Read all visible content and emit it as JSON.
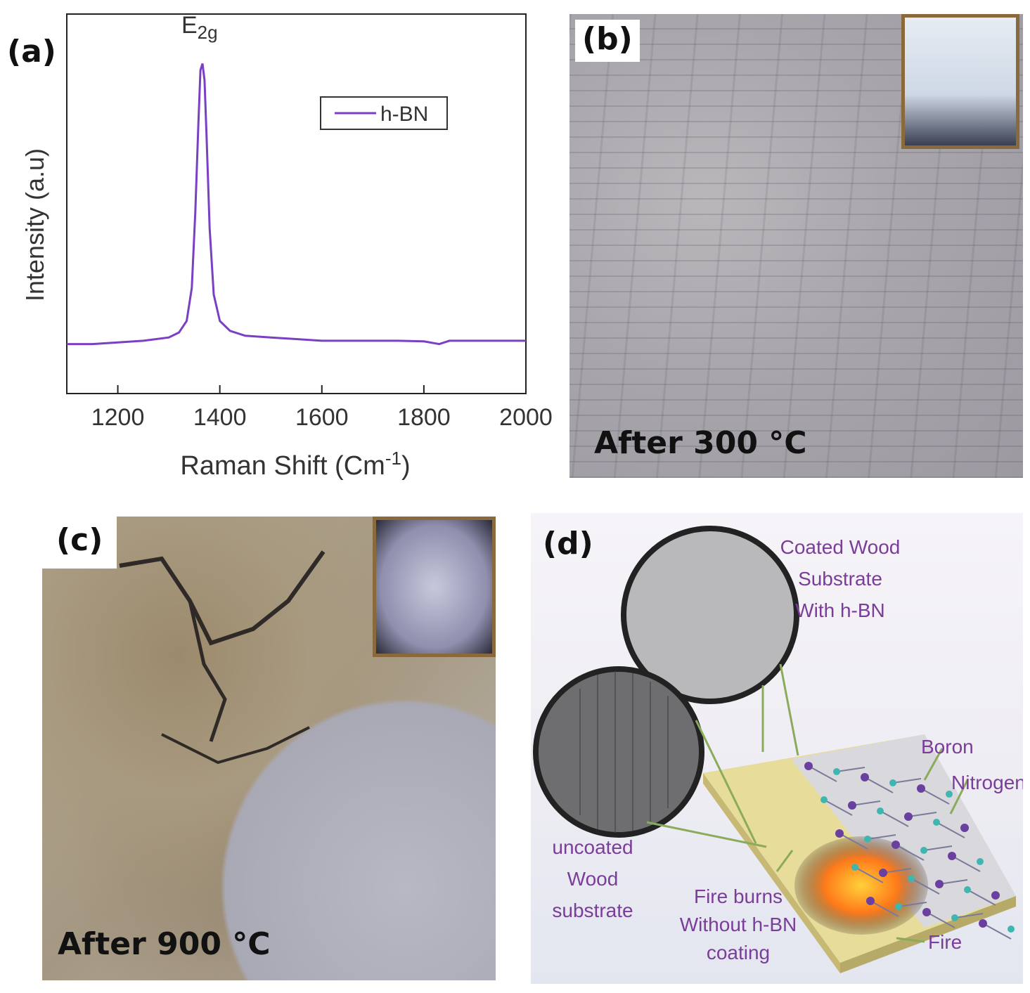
{
  "panels": {
    "a_label": "(a)",
    "b_label": "(b)",
    "c_label": "(c)",
    "d_label": "(d)"
  },
  "chart_data": {
    "type": "line",
    "xlabel": "Raman Shift (Cm",
    "xlabel_sup": "-1",
    "xlabel_end": ")",
    "ylabel": "Intensity (a.u)",
    "xlim": [
      1100,
      2000
    ],
    "ylim": [
      0,
      1.15
    ],
    "xticks": [
      1200,
      1400,
      1600,
      1800,
      2000
    ],
    "legend": "top-right",
    "annotations": [
      {
        "text": "E",
        "sub": "2g",
        "x": 1366,
        "y": 1.05
      }
    ],
    "series": [
      {
        "name": "h-BN",
        "color": "#7b3fc4",
        "x": [
          1100,
          1150,
          1200,
          1250,
          1300,
          1320,
          1335,
          1345,
          1352,
          1358,
          1362,
          1366,
          1370,
          1374,
          1380,
          1388,
          1400,
          1420,
          1450,
          1500,
          1550,
          1600,
          1650,
          1700,
          1750,
          1800,
          1830,
          1850,
          1900,
          1950,
          2000
        ],
        "y": [
          0.15,
          0.15,
          0.155,
          0.16,
          0.17,
          0.185,
          0.22,
          0.32,
          0.55,
          0.82,
          0.98,
          1.0,
          0.95,
          0.78,
          0.5,
          0.3,
          0.22,
          0.19,
          0.175,
          0.17,
          0.165,
          0.16,
          0.16,
          0.16,
          0.16,
          0.158,
          0.15,
          0.16,
          0.16,
          0.16,
          0.16
        ]
      }
    ]
  },
  "photos": {
    "b_caption": "After 300 °C",
    "c_caption": "After 900 °C"
  },
  "diagram": {
    "coated_lines": [
      "Coated Wood",
      "Substrate",
      "With h-BN"
    ],
    "uncoated_lines": [
      "uncoated",
      "Wood",
      "substrate"
    ],
    "fire_lines": [
      "Fire burns",
      "Without h-BN",
      "coating"
    ],
    "boron": "Boron",
    "nitrogen": "Nitrogen",
    "fire": "Fire"
  }
}
